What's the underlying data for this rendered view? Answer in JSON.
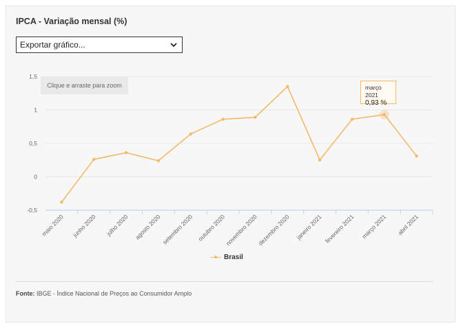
{
  "title": "IPCA - Variação mensal (%)",
  "export_select": {
    "value": "Exportar gráfico..."
  },
  "zoom_hint": "Clique e arraste para zoom",
  "legend": {
    "label": "Brasil"
  },
  "tooltip": {
    "label": "março 2021",
    "value": "0,93 %"
  },
  "source": {
    "label": "Fonte:",
    "text": "IBGE - Índice Nacional de Preços ao Consumidor Amplo"
  },
  "colors": {
    "series": "#f3b96b",
    "grid": "#e8e8e8",
    "axis": "#c9d3ef"
  },
  "chart_data": {
    "type": "line",
    "title": "IPCA - Variação mensal (%)",
    "xlabel": "",
    "ylabel": "",
    "categories": [
      "maio 2020",
      "junho 2020",
      "julho 2020",
      "agosto 2020",
      "setembro 2020",
      "outubro 2020",
      "novembro 2020",
      "dezembro 2020",
      "janeiro 2021",
      "fevereiro 2021",
      "março 2021",
      "abril 2021"
    ],
    "series": [
      {
        "name": "Brasil",
        "values": [
          -0.38,
          0.26,
          0.36,
          0.24,
          0.64,
          0.86,
          0.89,
          1.35,
          0.25,
          0.86,
          0.93,
          0.31
        ]
      }
    ],
    "y_ticks": [
      "1,5",
      "1",
      "0,5",
      "0",
      "-0,5"
    ],
    "y_tick_values": [
      1.5,
      1,
      0.5,
      0,
      -0.5
    ],
    "ylim": [
      -0.5,
      1.5
    ],
    "grid": true,
    "legend_position": "bottom-center"
  }
}
